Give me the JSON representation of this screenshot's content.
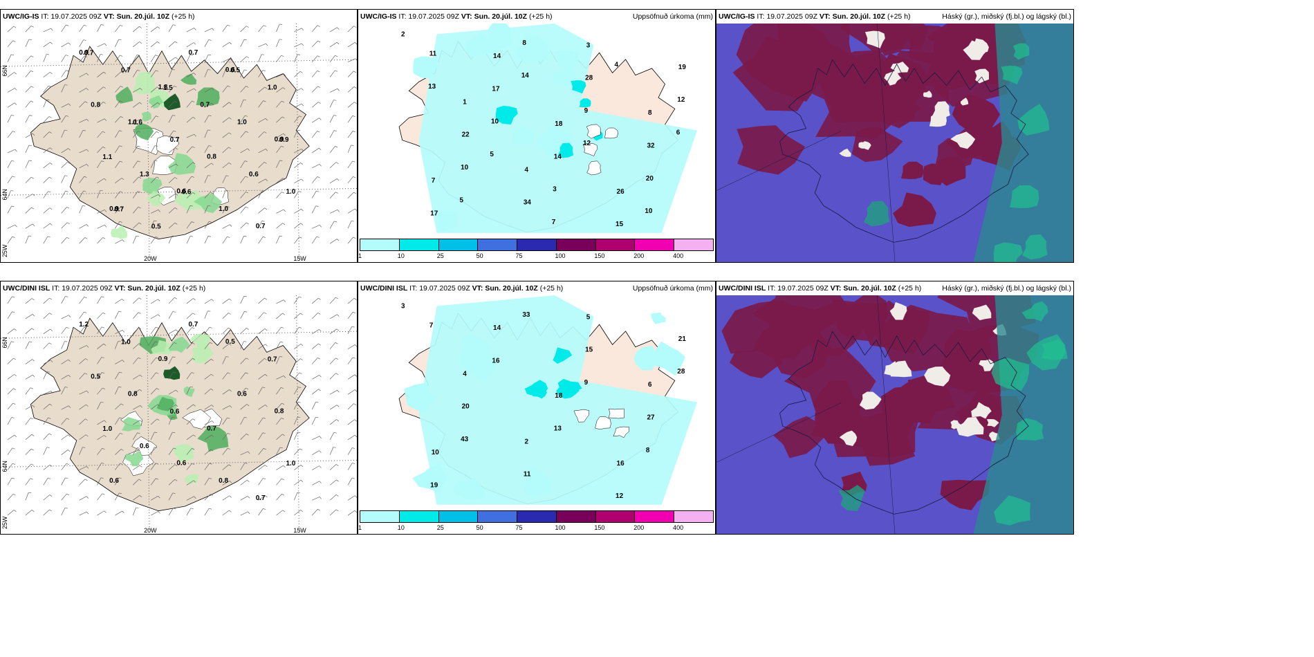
{
  "rows": [
    {
      "model": "UWC/IG-IS",
      "it_label": "IT:",
      "it_value": "19.07.2025 09Z",
      "vt_label": "VT:",
      "vt_value": "Sun. 20.júl. 10Z",
      "lead": "(+25 h)"
    },
    {
      "model": "UWC/DINI ISL",
      "it_label": "IT:",
      "it_value": "19.07.2025 09Z",
      "vt_label": "VT:",
      "vt_value": "Sun. 20.júl. 10Z",
      "lead": "(+25 h)"
    }
  ],
  "titles": {
    "precip": "Uppsöfnuð úrkoma (mm)",
    "clouds": "Háský (gr.), miðský (fj.bl.) og lágský (bl.)"
  },
  "axes": {
    "lat_66": "66N",
    "lat_64": "64N",
    "lat_edge": "25W",
    "lon_20": "20W",
    "lon_15": "15W"
  },
  "colorbar": {
    "colors": [
      "#b4fcfc",
      "#00eaea",
      "#00c0e8",
      "#4070e0",
      "#2a2ab0",
      "#78005a",
      "#b00070",
      "#f000b0",
      "#f4b0f0"
    ],
    "ticks": [
      "1",
      "10",
      "25",
      "50",
      "75",
      "100",
      "150",
      "200",
      "400"
    ]
  },
  "panel1_labels": [
    "0.9",
    "1.1",
    "0.6",
    "0.6",
    "0.9",
    "0.9",
    "1.8",
    "0.8",
    "0.7",
    "0.8",
    "1.3",
    "0.7",
    "1.0",
    "1.0",
    "0.7",
    "0.7",
    "1.0",
    "1.0",
    "1.1",
    "0.5",
    "0.7",
    "0.6",
    "0.7",
    "0.6",
    "0.6",
    "0.5",
    "0.9",
    "0.7",
    "1.5"
  ],
  "panel2_labels": [
    "2",
    "1",
    "4",
    "3",
    "8",
    "7",
    "14",
    "18",
    "26",
    "19",
    "22",
    "34",
    "28",
    "32",
    "17",
    "17",
    "14",
    "15",
    "12",
    "10",
    "8",
    "9",
    "20",
    "11",
    "10",
    "3",
    "4",
    "6",
    "5",
    "14",
    "12",
    "10",
    "13",
    "5",
    "7"
  ],
  "panel4_labels": [
    "1.2",
    "0.8",
    "0.6",
    "0.5",
    "0.8",
    "0.6",
    "0.9",
    "0.7",
    "0.7",
    "0.5",
    "0.6",
    "0.7",
    "0.6",
    "1.0",
    "1.0",
    "0.6",
    "0.8",
    "0.7",
    "1.0"
  ],
  "panel5_labels": [
    "3",
    "4",
    "2",
    "5",
    "6",
    "10",
    "14",
    "18",
    "16",
    "21",
    "20",
    "11",
    "15",
    "27",
    "19",
    "16",
    "13",
    "12",
    "28",
    "43",
    "33",
    "9",
    "8",
    "7"
  ]
}
